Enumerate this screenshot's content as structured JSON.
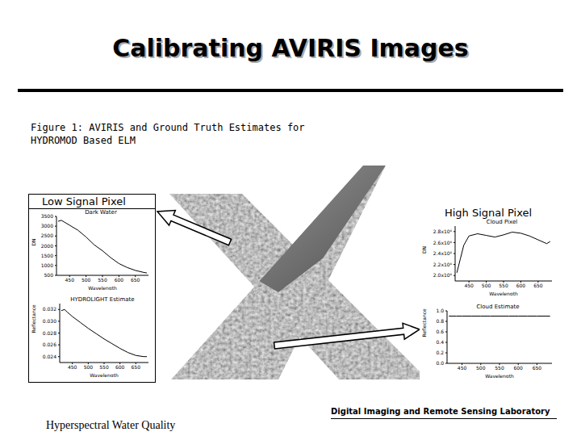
{
  "slide": {
    "title": "Calibrating AVIRIS Images",
    "caption": [
      "Figure 1: AVIRIS and Ground Truth Estimates for",
      "HYDROMOD Based ELM"
    ],
    "left_label": "Low Signal Pixel",
    "right_label": "High Signal Pixel",
    "footer_lab": "Digital Imaging and Remote Sensing Laboratory",
    "footer_topic": "Hyperspectral Water Quality"
  },
  "chart_data": [
    {
      "type": "line",
      "title": "Dark Water",
      "x_label": "Wavelength",
      "y_label": "DN",
      "color": "#000000",
      "x": [
        415,
        425,
        435,
        450,
        475,
        500,
        525,
        550,
        575,
        600,
        625,
        650,
        675,
        685
      ],
      "values": [
        3250,
        3300,
        3200,
        3050,
        2800,
        2450,
        2050,
        1750,
        1400,
        1100,
        900,
        750,
        650,
        620
      ],
      "xlim": [
        410,
        690
      ],
      "xticks": [
        450,
        500,
        550,
        600,
        650
      ],
      "ylim": [
        500,
        3500
      ],
      "yticks": [
        500,
        1000,
        1500,
        2000,
        2500,
        3000,
        3500
      ]
    },
    {
      "type": "line",
      "title": "HYDROLIGHT Estimate",
      "x_label": "Wavelength",
      "y_label": "Reflectance",
      "color": "#000000",
      "x": [
        415,
        425,
        435,
        450,
        475,
        500,
        525,
        550,
        575,
        600,
        625,
        650,
        675,
        685
      ],
      "values": [
        0.0318,
        0.032,
        0.0315,
        0.0308,
        0.0298,
        0.0288,
        0.0279,
        0.027,
        0.0262,
        0.0254,
        0.0247,
        0.0242,
        0.024,
        0.024
      ],
      "xlim": [
        410,
        690
      ],
      "xticks": [
        450,
        500,
        550,
        600,
        650
      ],
      "ylim": [
        0.023,
        0.033
      ],
      "yticks": [
        0.024,
        0.026,
        0.028,
        {
          "value": 0.03,
          "label": "0.030"
        },
        0.032
      ]
    },
    {
      "type": "line",
      "title": "Cloud Pixel",
      "x_label": "Wavelength",
      "y_label": "DN",
      "color": "#000000",
      "x": [
        415,
        425,
        435,
        450,
        475,
        500,
        525,
        550,
        575,
        600,
        625,
        650,
        675,
        685
      ],
      "values": [
        20500,
        23000,
        25500,
        27200,
        27600,
        27300,
        27000,
        27400,
        27900,
        27700,
        27200,
        26500,
        25800,
        26200
      ],
      "xlim": [
        410,
        690
      ],
      "xticks": [
        450,
        500,
        550,
        600,
        650
      ],
      "ylim": [
        19000,
        29000
      ],
      "yticks": [
        {
          "value": 20000,
          "label": "2.0x10⁴"
        },
        {
          "value": 22000,
          "label": "2.2x10⁴"
        },
        {
          "value": 24000,
          "label": "2.4x10⁴"
        },
        {
          "value": 26000,
          "label": "2.6x10⁴"
        },
        {
          "value": 28000,
          "label": "2.8x10⁴"
        }
      ]
    },
    {
      "type": "line",
      "title": "Cloud Estimate",
      "x_label": "Wavelength",
      "y_label": "Reflectance",
      "color": "#000000",
      "x": [
        415,
        425,
        435,
        450,
        475,
        500,
        525,
        550,
        575,
        600,
        625,
        650,
        675,
        685
      ],
      "values": [
        0.9,
        0.9,
        0.9,
        0.9,
        0.9,
        0.9,
        0.9,
        0.9,
        0.9,
        0.9,
        0.9,
        0.9,
        0.9,
        0.9
      ],
      "xlim": [
        410,
        690
      ],
      "xticks": [
        450,
        500,
        550,
        600,
        650
      ],
      "ylim": [
        0,
        1
      ],
      "yticks": [
        {
          "value": 0,
          "label": "0.0"
        },
        0.2,
        0.4,
        0.6,
        0.8,
        {
          "value": 1,
          "label": "1.0"
        }
      ]
    }
  ]
}
